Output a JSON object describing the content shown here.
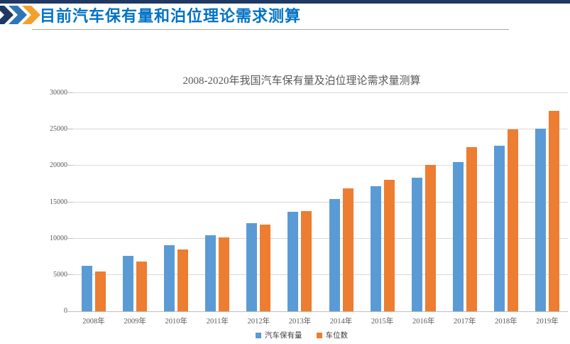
{
  "header": {
    "title": "目前汽车保有量和泊位理论需求测算",
    "title_color": "#0072C6",
    "top_bar_color": "#1F3864",
    "chevron_colors": [
      "#1F3864",
      "#2E75B6",
      "#F3A02C"
    ]
  },
  "chart_data": {
    "type": "bar",
    "title": "2008-2020年我国汽车保有量及泊位理论需求量测算",
    "categories": [
      "2008年",
      "2009年",
      "2010年",
      "2011年",
      "2012年",
      "2013年",
      "2014年",
      "2015年",
      "2016年",
      "2017年",
      "2018年",
      "2019年"
    ],
    "series": [
      {
        "name": "汽车保有量",
        "color": "#5B9BD5",
        "values": [
          6300,
          7600,
          9100,
          10500,
          12100,
          13700,
          15400,
          17200,
          18400,
          20500,
          22800,
          25100
        ]
      },
      {
        "name": "车位数",
        "color": "#ED7D31",
        "values": [
          5500,
          6800,
          8500,
          10200,
          11900,
          13800,
          16900,
          18100,
          20100,
          22600,
          25000,
          27600
        ]
      }
    ],
    "ylim": [
      0,
      30000
    ],
    "ytick_interval": 5000,
    "ytick_labels": [
      "0",
      "5000",
      "10000",
      "15000",
      "20000",
      "25000",
      "30000"
    ],
    "grid": true,
    "legend_position": "bottom",
    "axis_text_color": "#595959",
    "gridline_color": "#D9D9D9",
    "axis_line_color": "#BFBFBF"
  }
}
